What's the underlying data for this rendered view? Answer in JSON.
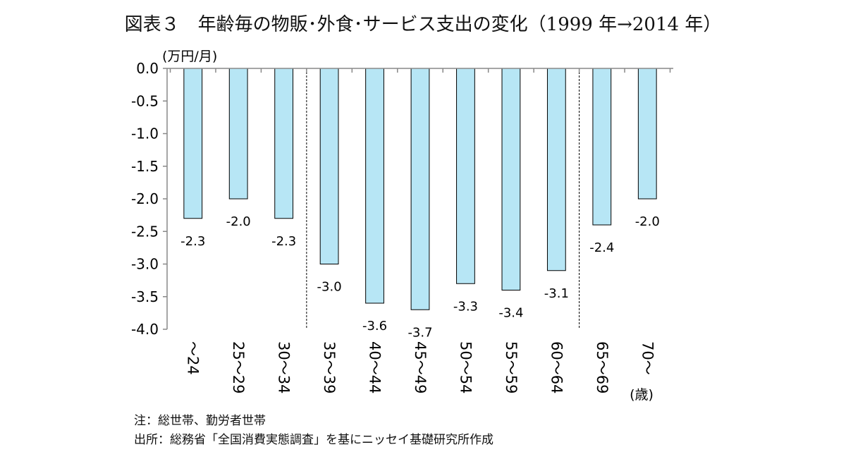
{
  "chart_data": {
    "type": "bar",
    "title": "図表３　年齢毎の物販･外食･サービス支出の変化（1999 年→2014 年）",
    "ylabel": "(万円/月)",
    "xlabel": "(歳)",
    "ylim": [
      -4.0,
      0.0
    ],
    "yticks": [
      "0.0",
      "-0.5",
      "-1.0",
      "-1.5",
      "-2.0",
      "-2.5",
      "-3.0",
      "-3.5",
      "-4.0"
    ],
    "categories": [
      "～24",
      "25～29",
      "30～34",
      "35～39",
      "40～44",
      "45～49",
      "50～54",
      "55～59",
      "60～64",
      "65～69",
      "70～"
    ],
    "values": [
      -2.3,
      -2.0,
      -2.3,
      -3.0,
      -3.6,
      -3.7,
      -3.3,
      -3.4,
      -3.1,
      -2.4,
      -2.0
    ],
    "data_labels": [
      "-2.3",
      "-2.0",
      "-2.3",
      "-3.0",
      "-3.6",
      "-3.7",
      "-3.3",
      "-3.4",
      "-3.1",
      "-2.4",
      "-2.0"
    ],
    "bar_color": "#b7e6f5",
    "bar_edge_color": "#000000",
    "grid": false,
    "legend": "none"
  },
  "notes": {
    "note": "注：総世帯、勤労者世帯",
    "source": "出所：総務省「全国消費実態調査」を基にニッセイ基礎研究所作成"
  }
}
